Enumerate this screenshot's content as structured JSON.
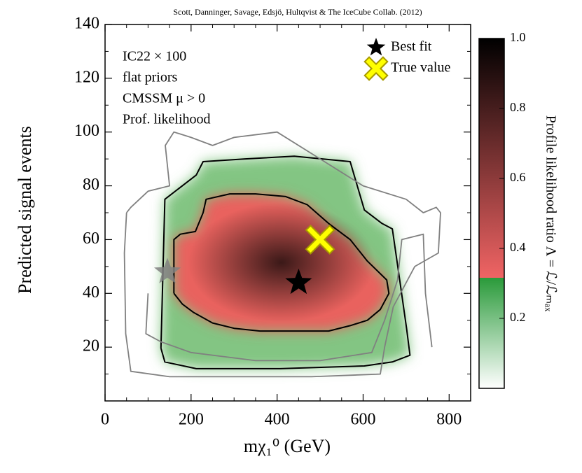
{
  "chart_data": {
    "type": "contour",
    "credit": "Scott, Danninger, Savage, Edsjö, Hultqvist & The IceCube Collab. (2012)",
    "xlabel": "mχ₁⁰ (GeV)",
    "ylabel": "Predicted signal events",
    "annotations": [
      "IC22 × 100",
      "flat priors",
      "CMSSM μ > 0",
      "Prof. likelihood"
    ],
    "xlim": [
      0,
      850
    ],
    "ylim": [
      0,
      140
    ],
    "xticks": [
      0,
      200,
      400,
      600,
      800
    ],
    "yticks": [
      20,
      40,
      60,
      80,
      100,
      120,
      140
    ],
    "xminorticks": [
      50,
      100,
      150,
      250,
      300,
      350,
      450,
      500,
      550,
      650,
      700,
      750,
      850
    ],
    "yminorticks": [
      10,
      30,
      50,
      70,
      90,
      110,
      130
    ],
    "legend": "upper right",
    "contours": [
      {
        "color": "#000000",
        "fill": "#6dbb6d",
        "x": [
          130,
          139,
          212,
          228,
          326,
          440,
          570,
          579,
          603,
          644,
          668,
          685,
          701,
          709,
          668,
          603,
          407,
          212,
          139,
          130
        ],
        "y": [
          19.6,
          75,
          84,
          89,
          90,
          91,
          89,
          84,
          71,
          66,
          64,
          45,
          27,
          17,
          14.5,
          13,
          12,
          12,
          14.5,
          19.6
        ]
      },
      {
        "color": "#000000",
        "fill": "#ee5c5c",
        "x": [
          160,
          160,
          175,
          210,
          228,
          235,
          290,
          350,
          420,
          470,
          520,
          570,
          610,
          655,
          660,
          640,
          610,
          570,
          520,
          440,
          360,
          300,
          250,
          205,
          180,
          160
        ],
        "y": [
          40,
          60,
          62,
          63,
          70,
          75,
          77,
          77,
          76,
          73,
          66,
          60,
          52,
          45,
          40,
          34,
          30,
          28,
          26,
          26,
          26,
          27,
          29,
          33,
          36,
          40
        ]
      },
      {
        "color": "#808080",
        "x": [
          50,
          45,
          48,
          60,
          150,
          300,
          480,
          640,
          650,
          670,
          720,
          775,
          780,
          770,
          740,
          700,
          600,
          500,
          400,
          300,
          250,
          200,
          160,
          140,
          150,
          100,
          60,
          50
        ],
        "y": [
          70,
          55,
          25,
          11,
          9,
          9,
          9,
          10,
          20,
          35,
          50,
          55,
          70,
          72,
          70,
          75,
          80,
          90,
          100,
          98,
          95,
          98,
          100,
          95,
          80,
          78,
          72,
          70
        ]
      },
      {
        "color": "#808080",
        "x": [
          100,
          95,
          130,
          200,
          350,
          500,
          620,
          650,
          680,
          690,
          740,
          745,
          760
        ],
        "y": [
          40,
          25,
          22,
          18,
          15,
          15,
          18,
          30,
          45,
          60,
          62,
          40,
          20
        ]
      }
    ],
    "points": [
      {
        "name": "Best fit",
        "x": 450,
        "y": 44,
        "color": "#000000",
        "marker": "star"
      },
      {
        "name": "True value",
        "x": 500,
        "y": 60,
        "color": "#ffff00",
        "marker": "x"
      },
      {
        "x": 145,
        "y": 48,
        "color": "#808080",
        "marker": "star"
      }
    ],
    "colorbar": {
      "label": "Profile likelihood ratio Λ = ℒ/ℒₘₐₓ",
      "lim": [
        0,
        1
      ],
      "ticks": [
        0.2,
        0.4,
        0.6,
        0.8,
        {
          "value": 1,
          "label": "1.0"
        }
      ],
      "stops": [
        {
          "value": 0,
          "color": "#ffffff"
        },
        {
          "value": 0.316,
          "color": "#2a9a3a"
        },
        {
          "value": 0.316,
          "color": "#f06464"
        },
        {
          "value": 1,
          "color": "#000000"
        }
      ]
    }
  }
}
